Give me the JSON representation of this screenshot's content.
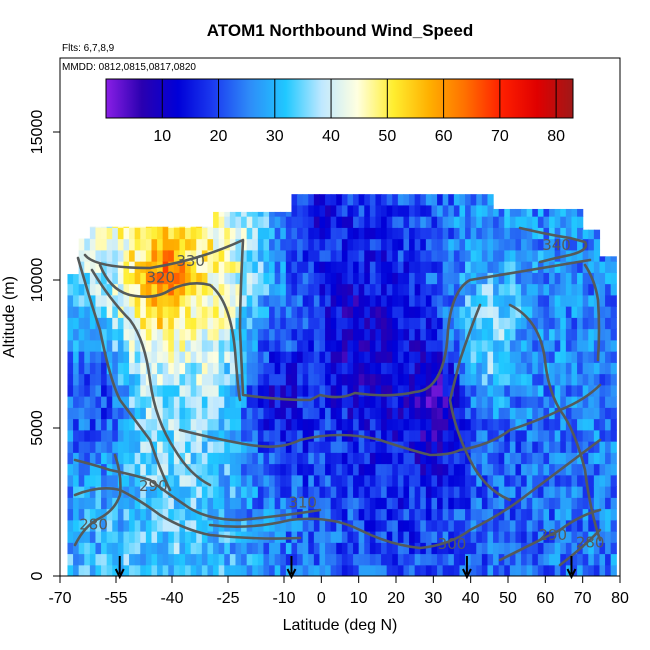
{
  "chart_data": {
    "type": "heatmap",
    "title": "ATOM1 Northbound Wind_Speed",
    "subtitle_lines": [
      "Flts: 6,7,8,9",
      "MMDD: 0812,0815,0817,0820"
    ],
    "xlabel": "Latitude (deg N)",
    "ylabel": "Altitude (m)",
    "xlim": [
      -70,
      80
    ],
    "ylim": [
      0,
      17500
    ],
    "x_ticks": [
      -70,
      -55,
      -40,
      -25,
      -10,
      0,
      10,
      20,
      30,
      40,
      50,
      60,
      70,
      80
    ],
    "x_tick_labels": [
      "-70",
      "-55",
      "-40",
      "-25",
      "-10",
      "0",
      "10",
      "20",
      "30",
      "40",
      "50",
      "60",
      "70",
      "80"
    ],
    "y_ticks": [
      0,
      5000,
      10000,
      15000
    ],
    "y_tick_labels": [
      "0",
      "5000",
      "10000",
      "15000"
    ],
    "colorbar": {
      "range": [
        0,
        83
      ],
      "ticks": [
        10,
        20,
        30,
        40,
        50,
        60,
        70,
        80
      ],
      "tick_labels": [
        "10",
        "20",
        "30",
        "40",
        "50",
        "60",
        "70",
        "80"
      ],
      "colors": [
        "#8a1fe6",
        "#2a00b0",
        "#0000d8",
        "#1c3cf0",
        "#2e8cf8",
        "#20c8ff",
        "#bfe8ff",
        "#ffffe0",
        "#ffee30",
        "#ffb000",
        "#ff7000",
        "#ff2000",
        "#e00000",
        "#a01818"
      ]
    },
    "contour_labels": [
      {
        "text": "330",
        "lat": -35,
        "alt": 10500
      },
      {
        "text": "320",
        "lat": -43,
        "alt": 9950
      },
      {
        "text": "340",
        "lat": 63,
        "alt": 11050
      },
      {
        "text": "290",
        "lat": -45,
        "alt": 2900
      },
      {
        "text": "280",
        "lat": -61,
        "alt": 1600
      },
      {
        "text": "310",
        "lat": -5,
        "alt": 2350
      },
      {
        "text": "300",
        "lat": 35,
        "alt": 950
      },
      {
        "text": "290",
        "lat": 62,
        "alt": 1250
      },
      {
        "text": "280",
        "lat": 72,
        "alt": 1000
      }
    ],
    "flight_markers": [
      -54,
      -8,
      39,
      67
    ],
    "wind_speed_samples": [
      {
        "lat": -40,
        "alt": 9700,
        "value": 72
      },
      {
        "lat": -38,
        "alt": 8500,
        "value": 42
      },
      {
        "lat": -30,
        "alt": 10800,
        "value": 48
      },
      {
        "lat": -37,
        "alt": 6000,
        "value": 35
      },
      {
        "lat": -12,
        "alt": 6000,
        "value": 12
      },
      {
        "lat": 10,
        "alt": 8000,
        "value": 8
      },
      {
        "lat": 30,
        "alt": 6000,
        "value": 6
      },
      {
        "lat": 44,
        "alt": 8000,
        "value": 38
      },
      {
        "lat": 50,
        "alt": 4000,
        "value": 22
      },
      {
        "lat": 68,
        "alt": 8000,
        "value": 25
      },
      {
        "lat": 0,
        "alt": 12300,
        "value": 14
      },
      {
        "lat": -60,
        "alt": 6000,
        "value": 18
      }
    ]
  }
}
